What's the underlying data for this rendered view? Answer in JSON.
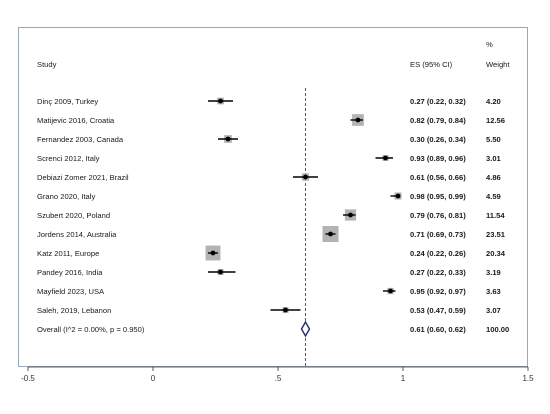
{
  "chart_data": {
    "type": "forest",
    "headers": {
      "study": "Study",
      "es": "ES (95% CI)",
      "weight_pct": "%",
      "weight": "Weight"
    },
    "studies": [
      {
        "study": "Dinç 2009, Turkey",
        "es": 0.27,
        "lo": 0.22,
        "hi": 0.32,
        "es_text": "0.27 (0.22, 0.32)",
        "weight": "4.20",
        "w": 4.2
      },
      {
        "study": "Matijevic 2016, Croatia",
        "es": 0.82,
        "lo": 0.79,
        "hi": 0.84,
        "es_text": "0.82 (0.79, 0.84)",
        "weight": "12.56",
        "w": 12.56
      },
      {
        "study": "Fernandez 2003, Canada",
        "es": 0.3,
        "lo": 0.26,
        "hi": 0.34,
        "es_text": "0.30 (0.26, 0.34)",
        "weight": "5.50",
        "w": 5.5
      },
      {
        "study": "Screnci 2012, Italy",
        "es": 0.93,
        "lo": 0.89,
        "hi": 0.96,
        "es_text": "0.93 (0.89, 0.96)",
        "weight": "3.01",
        "w": 3.01
      },
      {
        "study": "Debiazi Zomer 2021, Brazil",
        "es": 0.61,
        "lo": 0.56,
        "hi": 0.66,
        "es_text": "0.61 (0.56, 0.66)",
        "weight": "4.86",
        "w": 4.86
      },
      {
        "study": "Grano 2020, Italy",
        "es": 0.98,
        "lo": 0.95,
        "hi": 0.99,
        "es_text": "0.98 (0.95, 0.99)",
        "weight": "4.59",
        "w": 4.59
      },
      {
        "study": "Szubert 2020, Poland",
        "es": 0.79,
        "lo": 0.76,
        "hi": 0.81,
        "es_text": "0.79 (0.76, 0.81)",
        "weight": "11.54",
        "w": 11.54
      },
      {
        "study": "Jordens 2014, Australia",
        "es": 0.71,
        "lo": 0.69,
        "hi": 0.73,
        "es_text": "0.71 (0.69, 0.73)",
        "weight": "23.51",
        "w": 23.51
      },
      {
        "study": "Katz 2011, Europe",
        "es": 0.24,
        "lo": 0.22,
        "hi": 0.26,
        "es_text": "0.24 (0.22, 0.26)",
        "weight": "20.34",
        "w": 20.34
      },
      {
        "study": "Pandey 2016, India",
        "es": 0.27,
        "lo": 0.22,
        "hi": 0.33,
        "es_text": "0.27 (0.22, 0.33)",
        "weight": "3.19",
        "w": 3.19
      },
      {
        "study": "Mayfield 2023, USA",
        "es": 0.95,
        "lo": 0.92,
        "hi": 0.97,
        "es_text": "0.95 (0.92, 0.97)",
        "weight": "3.63",
        "w": 3.63
      },
      {
        "study": "Saleh, 2019, Lebanon",
        "es": 0.53,
        "lo": 0.47,
        "hi": 0.59,
        "es_text": "0.53 (0.47, 0.59)",
        "weight": "3.07",
        "w": 3.07
      }
    ],
    "overall": {
      "label": "Overall  (I^2 = 0.00%, p = 0.950)",
      "es": 0.61,
      "lo": 0.6,
      "hi": 0.62,
      "es_text": "0.61 (0.60, 0.62)",
      "weight": "100.00"
    },
    "reference_line": 0.61,
    "xlim": [
      -0.5,
      1.5
    ],
    "xticks": [
      -0.5,
      0,
      0.5,
      1,
      1.5
    ],
    "xtick_labels": [
      "-0.5",
      "0",
      ".5",
      "1",
      "1.5"
    ],
    "colors": {
      "reference_line": "#c0392b",
      "overall_diamond": "#1f2d6b",
      "weight_box": "#b3b3b3",
      "ci_line": "#000000"
    }
  }
}
